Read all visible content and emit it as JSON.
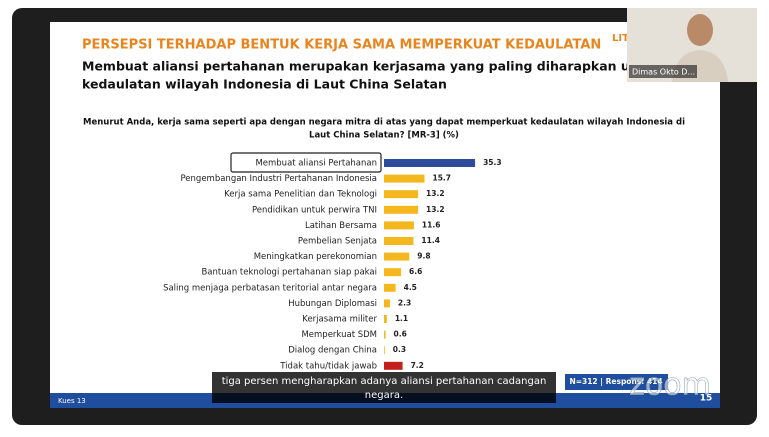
{
  "slide": {
    "heading": "PERSEPSI TERHADAP BENTUK KERJA SAMA MEMPERKUAT KEDAULATAN",
    "logo": "LIT",
    "subtitle_lines": [
      "Membuat aliansi pertahanan merupakan kerjasama yang paling diharapkan untuk mem",
      "kedaulatan wilayah Indonesia di Laut China Selatan"
    ],
    "footer_left": "Kues 13",
    "sample": "N=312 | Respons: 414",
    "page": "15"
  },
  "meeting": {
    "participant": "Dimas Okto D...",
    "caption_lines": [
      "tiga persen mengharapkan adanya aliansi pertahanan cadangan",
      "negara."
    ],
    "watermark": "zoom"
  },
  "chart_data": {
    "type": "bar",
    "title_lines": [
      "Menurut Anda, kerja sama seperti apa dengan negara mitra di atas yang dapat memperkuat kedaulatan wilayah Indonesia di",
      "Laut China Selatan? [MR-3] (%)"
    ],
    "categories": [
      "Membuat aliansi Pertahanan",
      "Pengembangan Industri Pertahanan Indonesia",
      "Kerja sama Penelitian dan Teknologi",
      "Pendidikan untuk perwira TNI",
      "Latihan Bersama",
      "Pembelian Senjata",
      "Meningkatkan perekonomian",
      "Bantuan teknologi pertahanan siap pakai",
      "Saling menjaga perbatasan teritorial antar negara",
      "Hubungan Diplomasi",
      "Kerjasama militer",
      "Memperkuat SDM",
      "Dialog dengan China",
      "Tidak tahu/tidak jawab"
    ],
    "values": [
      35.3,
      15.7,
      13.2,
      13.2,
      11.6,
      11.4,
      9.8,
      6.6,
      4.5,
      2.3,
      1.1,
      0.6,
      0.3,
      7.2
    ],
    "colors": [
      "#2f4b9c",
      "#f4b81e",
      "#f4b81e",
      "#f4b81e",
      "#f4b81e",
      "#f4b81e",
      "#f4b81e",
      "#f4b81e",
      "#f4b81e",
      "#f4b81e",
      "#f4b81e",
      "#f4b81e",
      "#f4b81e",
      "#c2201c"
    ]
  }
}
